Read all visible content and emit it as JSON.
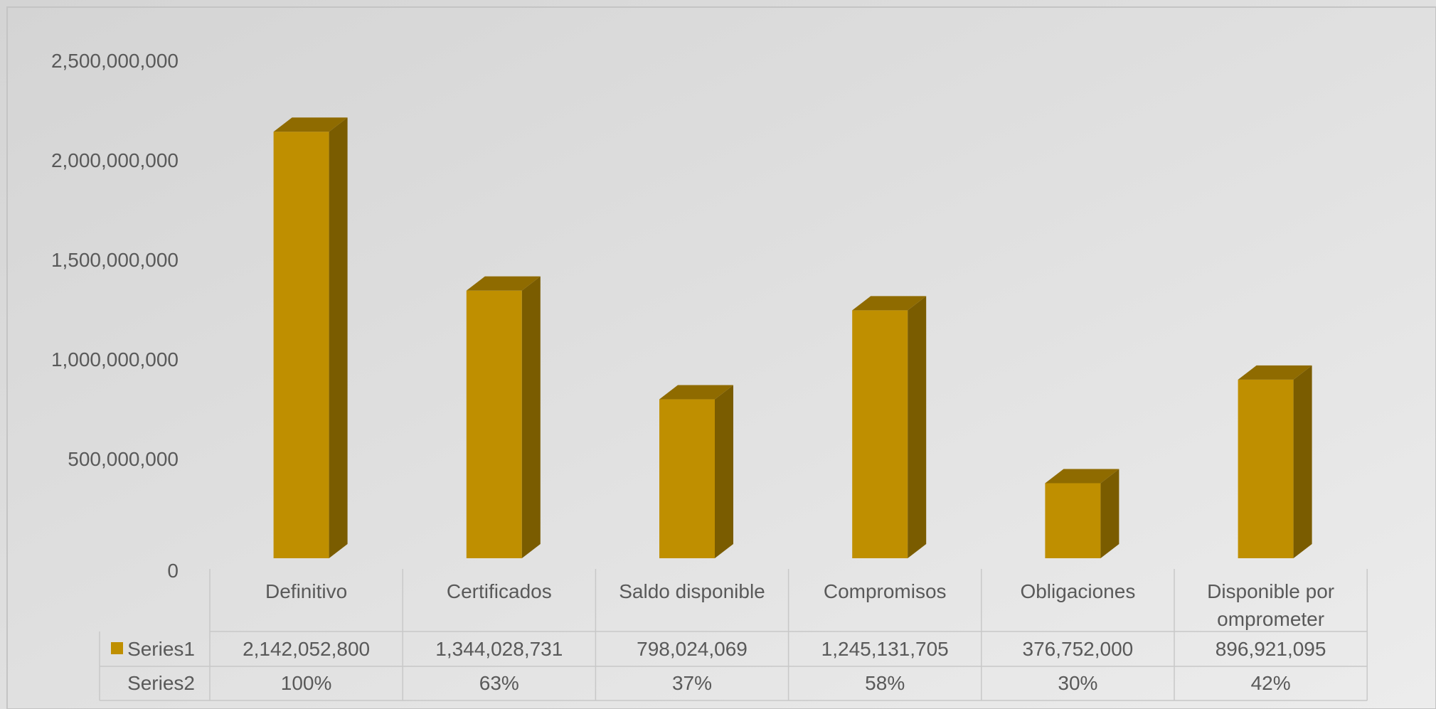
{
  "chart_data": {
    "type": "bar",
    "style": "3d-column",
    "categories": [
      "Definitivo",
      "Certificados",
      "Saldo disponible",
      "Compromisos",
      "Obligaciones",
      "Disponible por omprometer"
    ],
    "category_lines": [
      [
        "Definitivo"
      ],
      [
        "Certificados"
      ],
      [
        "Saldo disponible"
      ],
      [
        "Compromisos"
      ],
      [
        "Obligaciones"
      ],
      [
        "Disponible por",
        "omprometer"
      ]
    ],
    "series": [
      {
        "name": "Series1",
        "values": [
          2142052800,
          1344028731,
          798024069,
          1245131705,
          376752000,
          896921095
        ],
        "labels": [
          "2,142,052,800",
          "1,344,028,731",
          "798,024,069",
          "1,245,131,705",
          "376,752,000",
          "896,921,095"
        ],
        "color": "#bf8f00"
      },
      {
        "name": "Series2",
        "values": [
          1.0,
          0.63,
          0.37,
          0.58,
          0.3,
          0.42
        ],
        "labels": [
          "100%",
          "63%",
          "37%",
          "58%",
          "30%",
          "42%"
        ],
        "plotted": false
      }
    ],
    "ylim": [
      0,
      2500000000
    ],
    "yticks": [
      0,
      500000000,
      1000000000,
      1500000000,
      2000000000,
      2500000000
    ],
    "ytick_labels": [
      "0",
      "500,000,000",
      "1,000,000,000",
      "1,500,000,000",
      "2,000,000,000",
      "2,500,000,000"
    ],
    "title": "",
    "xlabel": "",
    "ylabel": "",
    "data_table": true,
    "grid": false,
    "colors": {
      "bar_front": "#bf8f00",
      "bar_top": "#8f6b00",
      "bar_side": "#7a5c00",
      "text": "#595959",
      "table_lines": "#c8c8c8",
      "background_start": "#d4d4d4",
      "background_end": "#ececec"
    }
  }
}
